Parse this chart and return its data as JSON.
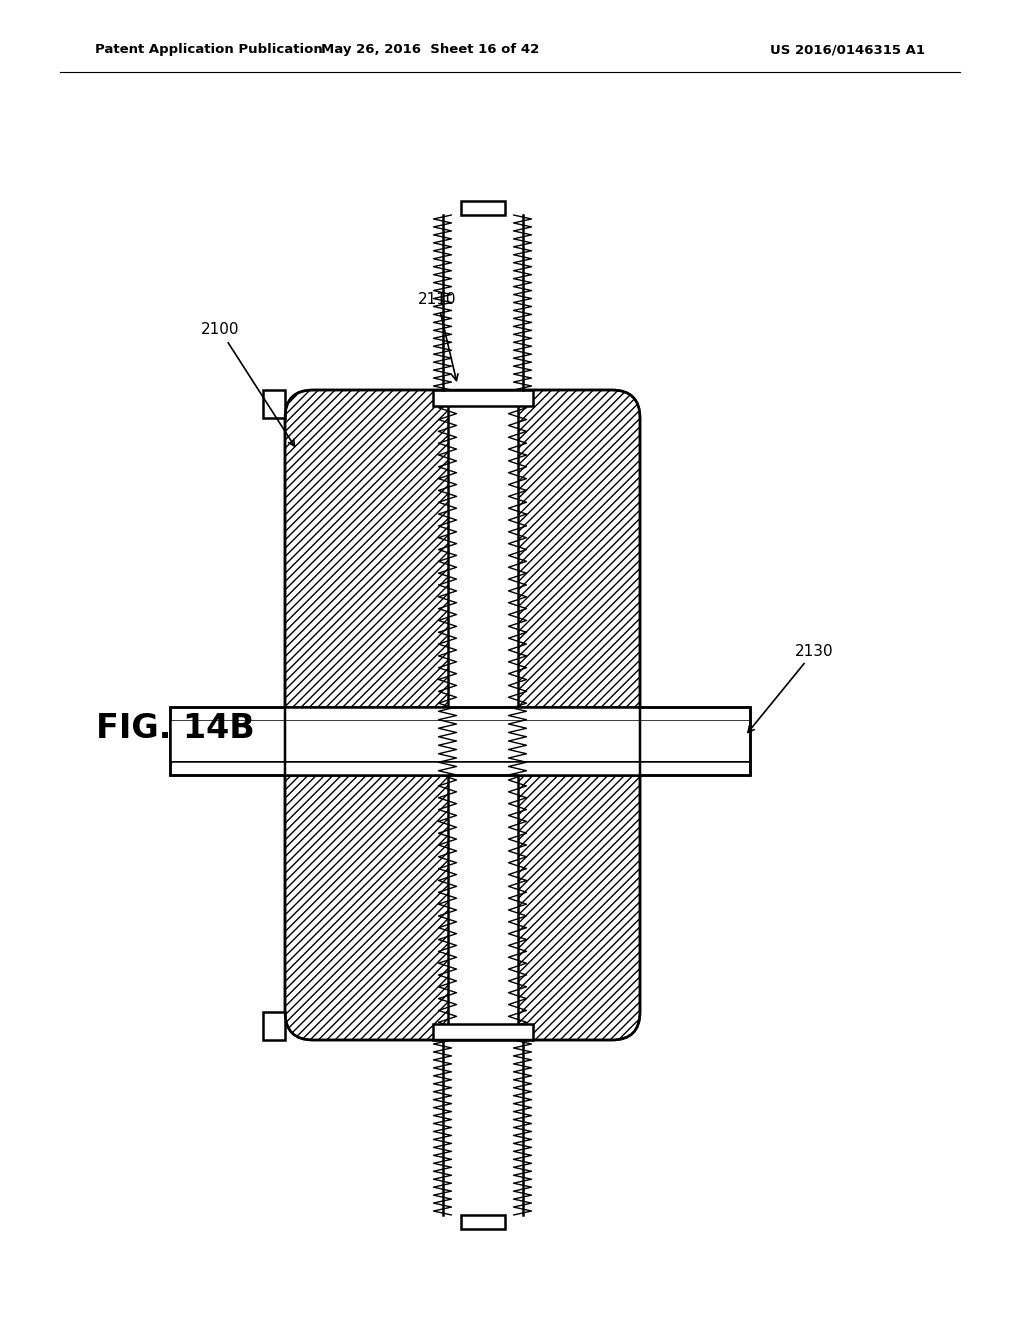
{
  "title_left": "Patent Application Publication",
  "title_mid": "May 26, 2016  Sheet 16 of 42",
  "title_right": "US 2016/0146315 A1",
  "fig_label": "FIG. 14B",
  "label_2100": "2100",
  "label_2110": "2110",
  "label_2130": "2130",
  "bg_color": "#ffffff",
  "line_color": "#000000"
}
